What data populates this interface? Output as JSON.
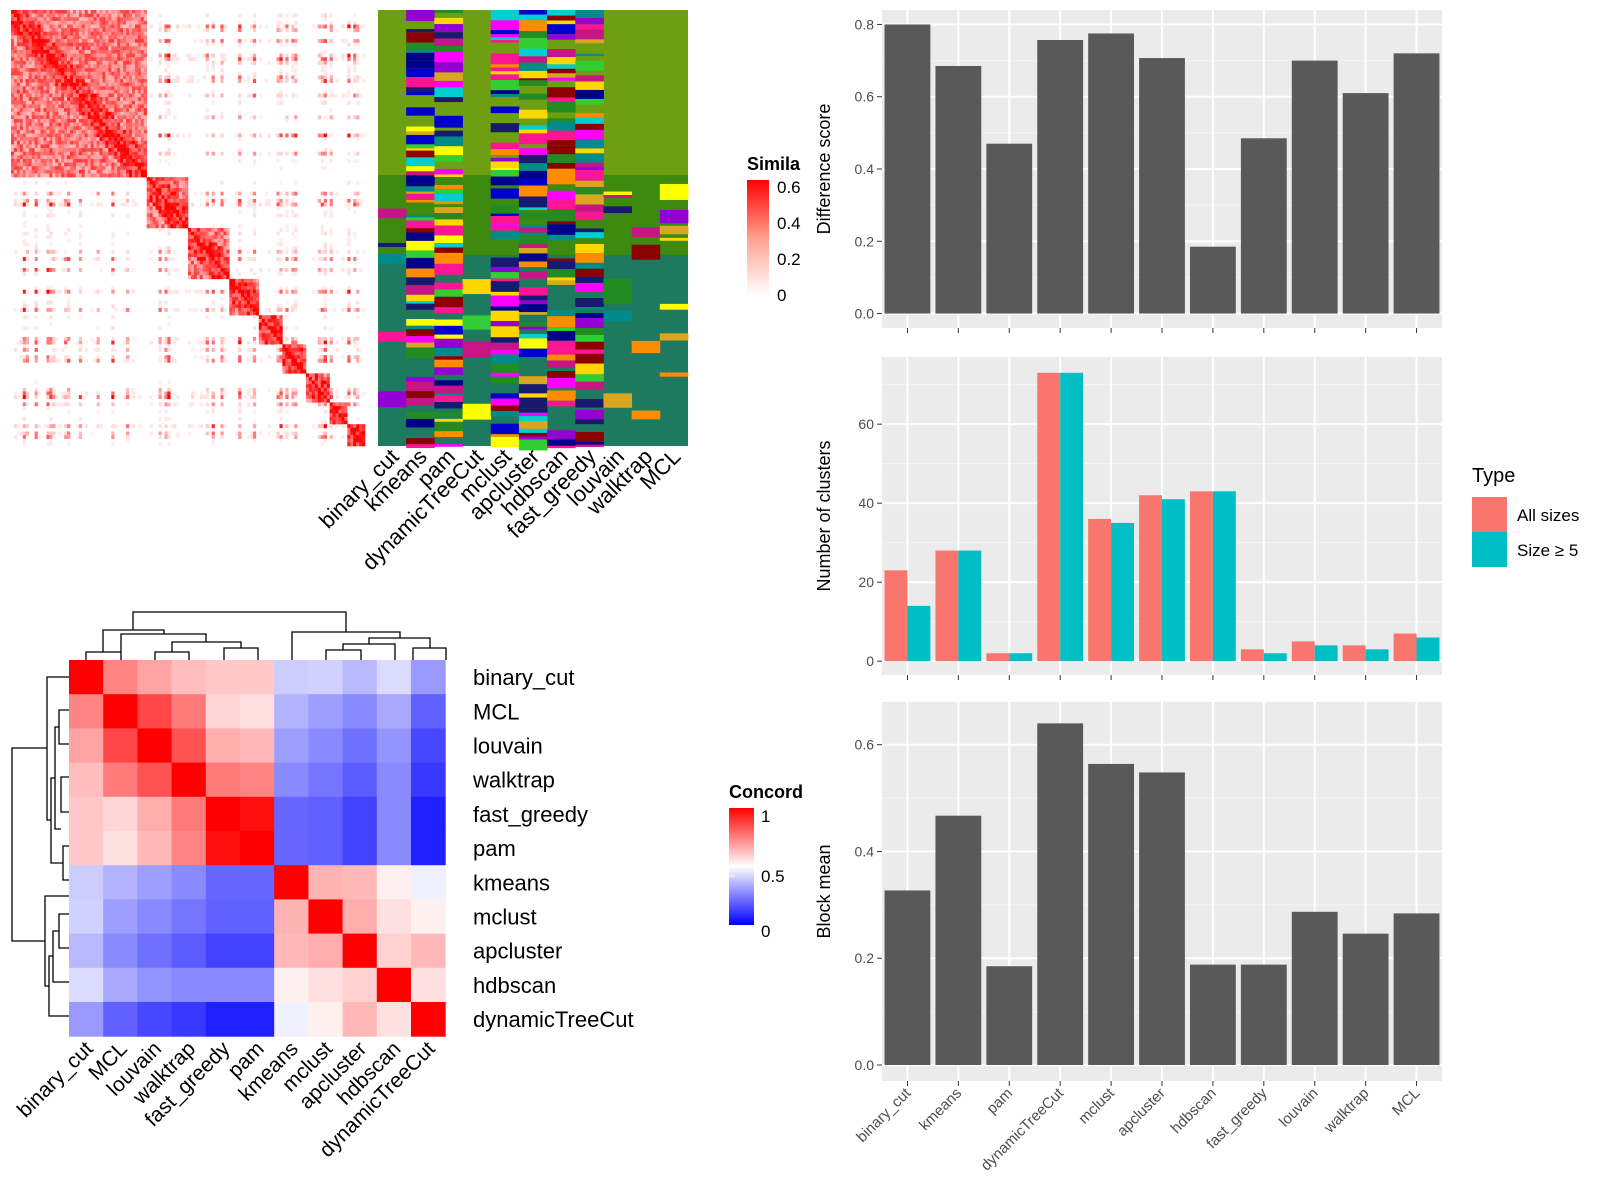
{
  "methods_bar_order": [
    "binary_cut",
    "kmeans",
    "pam",
    "dynamicTreeCut",
    "mclust",
    "apcluster",
    "hdbscan",
    "fast_greedy",
    "louvain",
    "walktrap",
    "MCL"
  ],
  "similarity_heatmap": {
    "legend_title": "Simila",
    "legend_ticks": [
      "0.6",
      "0.4",
      "0.2",
      "0"
    ],
    "column_labels": [
      "binary_cut",
      "kmeans",
      "pam",
      "dynamicTreeCut",
      "mclust",
      "apcluster",
      "hdbscan",
      "fast_greedy",
      "louvain",
      "walktrap",
      "MCL"
    ]
  },
  "concordance_heatmap": {
    "legend_title": "Concord",
    "legend_ticks": [
      "1",
      "0.5",
      "0"
    ],
    "row_labels": [
      "binary_cut",
      "MCL",
      "louvain",
      "walktrap",
      "fast_greedy",
      "pam",
      "kmeans",
      "mclust",
      "apcluster",
      "hdbscan",
      "dynamicTreeCut"
    ],
    "column_labels": [
      "binary_cut",
      "MCL",
      "louvain",
      "walktrap",
      "fast_greedy",
      "pam",
      "kmeans",
      "mclust",
      "apcluster",
      "hdbscan",
      "dynamicTreeCut"
    ]
  },
  "legend_type": {
    "title": "Type",
    "items": [
      {
        "label": "All sizes",
        "color": "#F8766D"
      },
      {
        "label": "Size ≥ 5",
        "color": "#00BFC4"
      }
    ]
  },
  "chart_data": [
    {
      "type": "bar",
      "ylabel": "Difference score",
      "categories": [
        "binary_cut",
        "kmeans",
        "pam",
        "dynamicTreeCut",
        "mclust",
        "apcluster",
        "hdbscan",
        "fast_greedy",
        "louvain",
        "walktrap",
        "MCL"
      ],
      "values": [
        0.8,
        0.685,
        0.47,
        0.757,
        0.775,
        0.707,
        0.185,
        0.485,
        0.7,
        0.61,
        0.72
      ],
      "ylim": [
        -0.04,
        0.84
      ],
      "yticks": [
        0.0,
        0.2,
        0.4,
        0.6,
        0.8
      ],
      "ytick_labels": [
        "0.0",
        "0.2",
        "0.4",
        "0.6",
        "0.8"
      ],
      "color": "#595959"
    },
    {
      "type": "bar",
      "ylabel": "Number of clusters",
      "categories": [
        "binary_cut",
        "kmeans",
        "pam",
        "dynamicTreeCut",
        "mclust",
        "apcluster",
        "hdbscan",
        "fast_greedy",
        "louvain",
        "walktrap",
        "MCL"
      ],
      "series": [
        {
          "name": "All sizes",
          "values": [
            23,
            28,
            2,
            73,
            36,
            42,
            43,
            3,
            5,
            4,
            7
          ]
        },
        {
          "name": "Size ≥ 5",
          "values": [
            14,
            28,
            2,
            73,
            35,
            41,
            43,
            2,
            4,
            3,
            6
          ]
        }
      ],
      "ylim": [
        -3.5,
        77
      ],
      "yticks": [
        0,
        20,
        40,
        60
      ],
      "ytick_labels": [
        "0",
        "20",
        "40",
        "60"
      ],
      "legend": "right"
    },
    {
      "type": "bar",
      "ylabel": "Block mean",
      "categories": [
        "binary_cut",
        "kmeans",
        "pam",
        "dynamicTreeCut",
        "mclust",
        "apcluster",
        "hdbscan",
        "fast_greedy",
        "louvain",
        "walktrap",
        "MCL"
      ],
      "values": [
        0.327,
        0.467,
        0.185,
        0.64,
        0.564,
        0.548,
        0.188,
        0.188,
        0.287,
        0.246,
        0.284
      ],
      "ylim": [
        -0.03,
        0.68
      ],
      "yticks": [
        0.0,
        0.2,
        0.4,
        0.6
      ],
      "ytick_labels": [
        "0.0",
        "0.2",
        "0.4",
        "0.6"
      ],
      "color": "#595959"
    },
    {
      "type": "heatmap",
      "rows": [
        "binary_cut",
        "MCL",
        "louvain",
        "walktrap",
        "fast_greedy",
        "pam",
        "kmeans",
        "mclust",
        "apcluster",
        "hdbscan",
        "dynamicTreeCut"
      ],
      "cols": [
        "binary_cut",
        "MCL",
        "louvain",
        "walktrap",
        "fast_greedy",
        "pam",
        "kmeans",
        "mclust",
        "apcluster",
        "hdbscan",
        "dynamicTreeCut"
      ],
      "values": [
        [
          1.0,
          0.74,
          0.68,
          0.63,
          0.61,
          0.61,
          0.4,
          0.41,
          0.36,
          0.43,
          0.3
        ],
        [
          0.74,
          1.0,
          0.86,
          0.76,
          0.58,
          0.56,
          0.35,
          0.31,
          0.27,
          0.33,
          0.19
        ],
        [
          0.68,
          0.86,
          1.0,
          0.84,
          0.66,
          0.64,
          0.31,
          0.27,
          0.22,
          0.29,
          0.14
        ],
        [
          0.63,
          0.76,
          0.84,
          1.0,
          0.76,
          0.74,
          0.27,
          0.23,
          0.18,
          0.27,
          0.11
        ],
        [
          0.61,
          0.58,
          0.66,
          0.76,
          1.0,
          0.97,
          0.2,
          0.19,
          0.13,
          0.27,
          0.06
        ],
        [
          0.61,
          0.56,
          0.64,
          0.74,
          0.97,
          1.0,
          0.2,
          0.19,
          0.13,
          0.27,
          0.06
        ],
        [
          0.4,
          0.35,
          0.31,
          0.27,
          0.2,
          0.2,
          1.0,
          0.65,
          0.64,
          0.53,
          0.47
        ],
        [
          0.41,
          0.31,
          0.27,
          0.23,
          0.19,
          0.19,
          0.65,
          1.0,
          0.66,
          0.56,
          0.53
        ],
        [
          0.36,
          0.27,
          0.22,
          0.18,
          0.13,
          0.13,
          0.64,
          0.66,
          1.0,
          0.59,
          0.64
        ],
        [
          0.43,
          0.33,
          0.29,
          0.27,
          0.27,
          0.27,
          0.53,
          0.56,
          0.59,
          1.0,
          0.56
        ],
        [
          0.3,
          0.19,
          0.14,
          0.11,
          0.06,
          0.06,
          0.47,
          0.53,
          0.64,
          0.56,
          1.0
        ]
      ],
      "color_scale": {
        "low": "#0000FF",
        "mid": "#FFFFFF",
        "high": "#FF0000",
        "range": [
          0,
          1
        ]
      }
    }
  ]
}
